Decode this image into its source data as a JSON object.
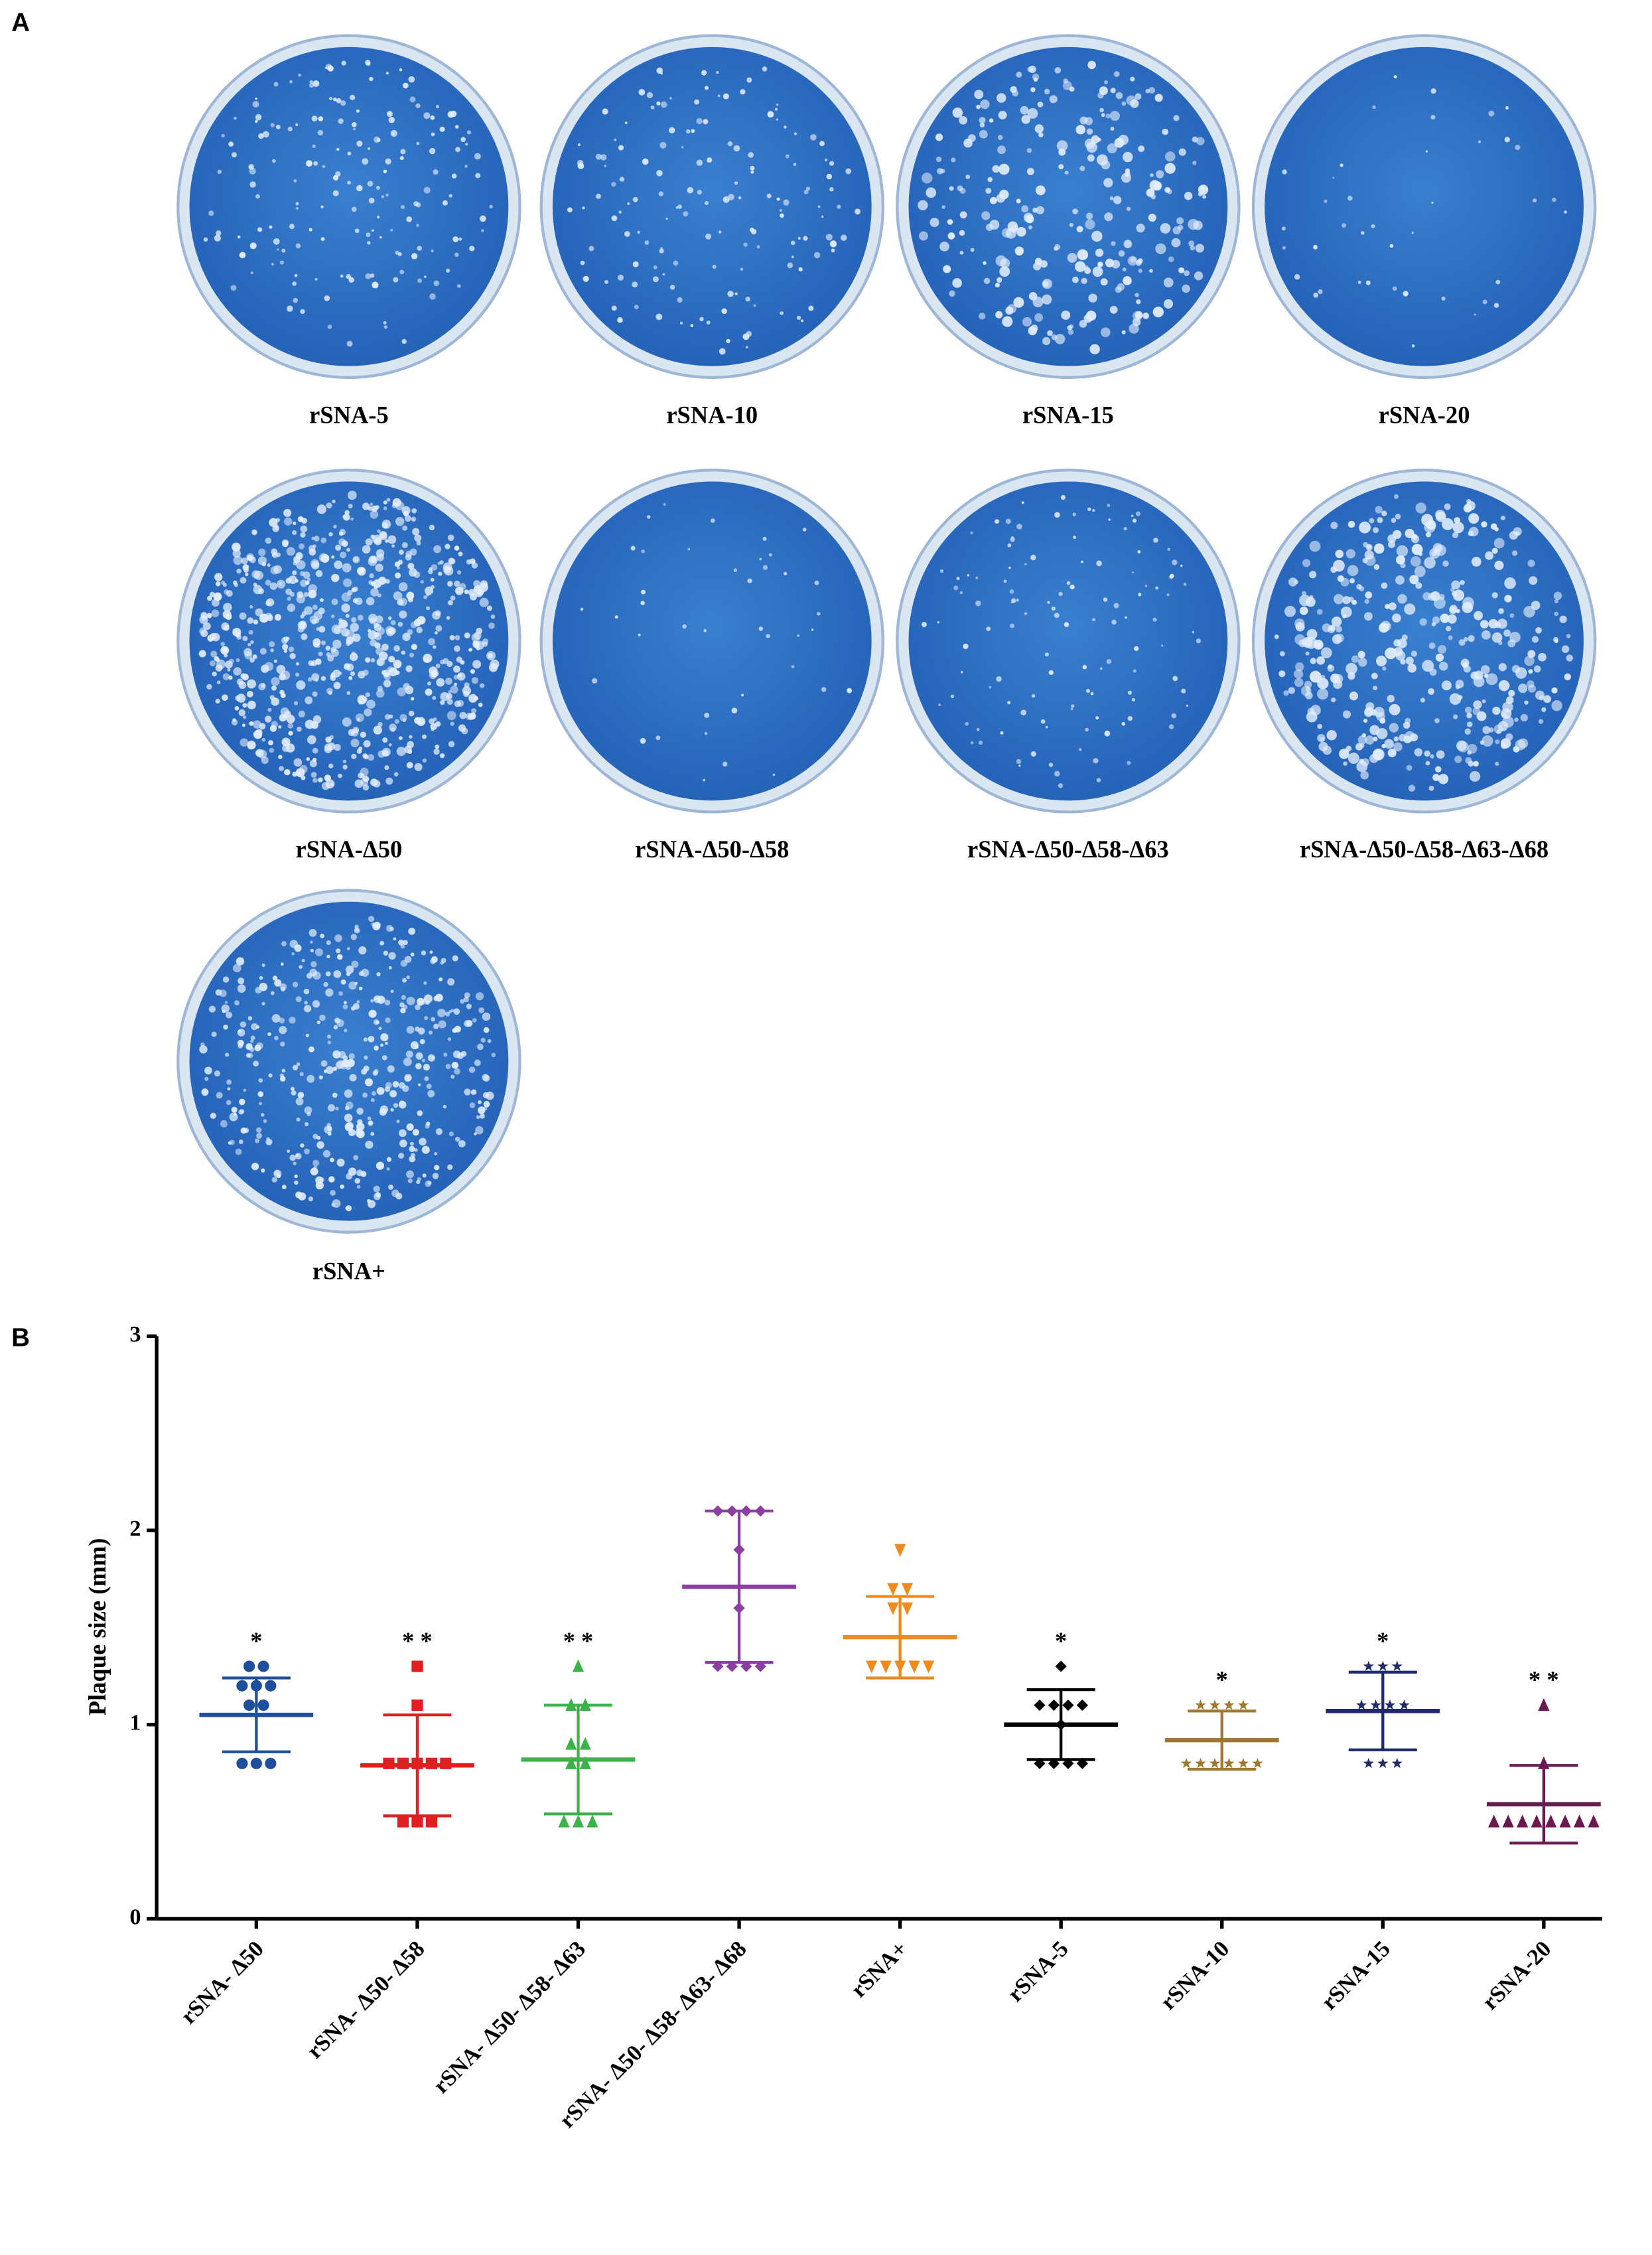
{
  "panel_a": {
    "label": "A",
    "plates": [
      "rSNA-5",
      "rSNA-10",
      "rSNA-15",
      "rSNA-20",
      "rSNA-Δ50",
      "rSNA-Δ50-Δ58",
      "rSNA-Δ50-Δ58-Δ63",
      "rSNA-Δ50-Δ58-Δ63-Δ68",
      "rSNA+"
    ]
  },
  "panel_b": {
    "label": "B"
  },
  "chart_data": {
    "type": "dotplot",
    "ylabel": "Plaque size (mm)",
    "categories": [
      "rSNA- Δ50",
      "rSNA- Δ50- Δ58",
      "rSNA- Δ50- Δ58- Δ63",
      "rSNA- Δ50- Δ58- Δ63- Δ68",
      "rSNA+",
      "rSNA-5",
      "rSNA-10",
      "rSNA-15",
      "rSNA-20"
    ],
    "ylim": [
      0,
      3
    ],
    "yticks": [
      0,
      1,
      2,
      3
    ],
    "groups": [
      {
        "color": "#1f4e9c",
        "marker": "circle",
        "points": [
          1.3,
          1.3,
          1.2,
          1.2,
          1.2,
          1.1,
          1.1,
          0.8,
          0.8,
          0.8
        ],
        "mean": 1.05,
        "sd": 0.19,
        "annotation": "*"
      },
      {
        "color": "#e02020",
        "marker": "square",
        "points": [
          1.3,
          1.1,
          0.8,
          0.8,
          0.8,
          0.8,
          0.8,
          0.5,
          0.5,
          0.5
        ],
        "mean": 0.79,
        "sd": 0.26,
        "annotation": "* *"
      },
      {
        "color": "#3cb34a",
        "marker": "triangle",
        "points": [
          1.3,
          1.1,
          1.1,
          0.9,
          0.9,
          0.8,
          0.8,
          0.5,
          0.5,
          0.5
        ],
        "mean": 0.82,
        "sd": 0.28,
        "annotation": "* *"
      },
      {
        "color": "#8b3fa0",
        "marker": "diamond",
        "points": [
          2.1,
          2.1,
          2.1,
          2.1,
          1.9,
          1.6,
          1.3,
          1.3,
          1.3,
          1.3
        ],
        "mean": 1.71,
        "sd": 0.39
      },
      {
        "color": "#f08a1c",
        "marker": "triangle-down",
        "points": [
          1.9,
          1.7,
          1.7,
          1.6,
          1.6,
          1.3,
          1.3,
          1.3,
          1.3,
          1.3
        ],
        "mean": 1.45,
        "sd": 0.21
      },
      {
        "color": "#000000",
        "marker": "diamond",
        "points": [
          1.3,
          1.1,
          1.1,
          1.1,
          1.1,
          1.0,
          0.8,
          0.8,
          0.8,
          0.8
        ],
        "mean": 1.0,
        "sd": 0.18,
        "annotation": "*"
      },
      {
        "color": "#a07830",
        "marker": "star",
        "points": [
          1.1,
          1.1,
          1.1,
          1.1,
          0.8,
          0.8,
          0.8,
          0.8,
          0.8,
          0.8
        ],
        "mean": 0.92,
        "sd": 0.15,
        "annotation": "*"
      },
      {
        "color": "#1f2a6a",
        "marker": "star",
        "points": [
          1.3,
          1.3,
          1.3,
          1.1,
          1.1,
          1.1,
          1.1,
          0.8,
          0.8,
          0.8
        ],
        "mean": 1.07,
        "sd": 0.2,
        "annotation": "*"
      },
      {
        "color": "#6a1a50",
        "marker": "triangle",
        "points": [
          1.1,
          0.8,
          0.5,
          0.5,
          0.5,
          0.5,
          0.5,
          0.5,
          0.5,
          0.5
        ],
        "mean": 0.59,
        "sd": 0.2,
        "annotation": "* *"
      }
    ]
  }
}
